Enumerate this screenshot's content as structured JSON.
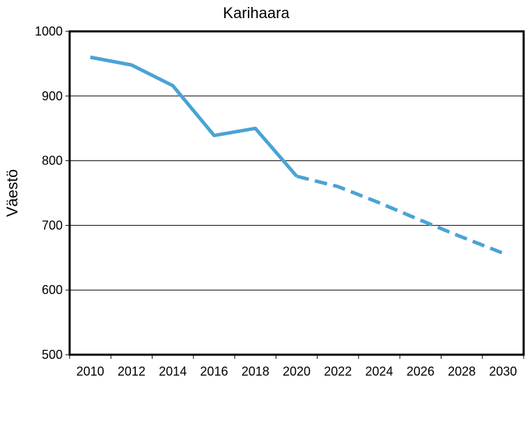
{
  "chart_data": {
    "type": "line",
    "title": "Karihaara",
    "xlabel": "",
    "ylabel": "Väestö",
    "ylim": [
      500,
      1000
    ],
    "yticks": [
      500,
      600,
      700,
      800,
      900,
      1000
    ],
    "x_tick_labels": [
      "2010",
      "2012",
      "2014",
      "2016",
      "2018",
      "2020",
      "2022",
      "2024",
      "2026",
      "2028",
      "2030"
    ],
    "grid": "horizontal",
    "series": [
      {
        "style": "solid",
        "color": "#4aa3d5",
        "x": [
          2010,
          2012,
          2014,
          2016,
          2018,
          2020
        ],
        "values": [
          960,
          948,
          916,
          839,
          850,
          776
        ]
      },
      {
        "style": "dashed",
        "color": "#4aa3d5",
        "x": [
          2020,
          2022,
          2024,
          2026,
          2028,
          2030
        ],
        "values": [
          776,
          760,
          735,
          708,
          682,
          657
        ]
      }
    ]
  }
}
